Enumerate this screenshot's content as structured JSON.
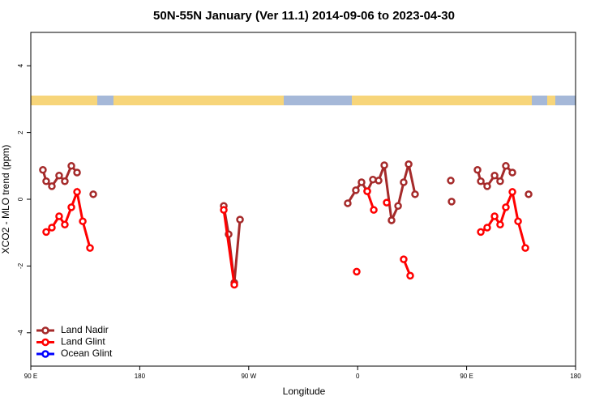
{
  "chart_data": {
    "type": "line",
    "title": "50N-55N January (Ver 11.1)   2014-09-06 to 2023-04-30",
    "xlabel": "Longitude",
    "ylabel": "XCO2 - MLO trend (ppm)",
    "xlim": [
      90,
      540
    ],
    "ylim": [
      -5,
      5
    ],
    "xticks": [
      {
        "value": 90,
        "label": "90 E"
      },
      {
        "value": 180,
        "label": "180"
      },
      {
        "value": 270,
        "label": "90 W"
      },
      {
        "value": 360,
        "label": "0"
      },
      {
        "value": 450,
        "label": "90 E"
      },
      {
        "value": 540,
        "label": "180"
      }
    ],
    "yticks": [
      -4,
      -2,
      0,
      2,
      4
    ],
    "legend": "bottom-left",
    "series": [
      {
        "name": "Land Nadir",
        "color": "#a52a2a",
        "x": [
          100.0,
          102.7,
          107.4,
          113.4,
          118.1,
          123.5,
          128.2,
          null,
          141.6,
          null,
          249.4,
          253.4,
          258.1,
          262.8,
          null,
          351.8,
          358.5,
          363.2,
          367.9,
          372.6,
          377.3,
          382.0,
          388.0,
          393.4,
          398.0,
          402.1,
          407.4,
          null,
          436.9,
          null,
          437.6,
          null,
          459.0,
          461.7,
          467.0,
          473.1,
          477.7,
          482.4,
          487.8,
          null,
          501.2
        ],
        "values": [
          0.88,
          0.54,
          0.39,
          0.71,
          0.54,
          1.0,
          0.8,
          null,
          0.15,
          null,
          -0.2,
          -1.05,
          -2.5,
          -0.61,
          null,
          -0.12,
          0.27,
          0.51,
          0.24,
          0.59,
          0.56,
          1.02,
          -0.63,
          -0.2,
          0.51,
          1.05,
          0.15,
          null,
          0.56,
          null,
          -0.07,
          null,
          0.88,
          0.54,
          0.39,
          0.71,
          0.54,
          1.0,
          0.8,
          null,
          0.15
        ]
      },
      {
        "name": "Land Glint",
        "color": "#ff0000",
        "x": [
          102.7,
          107.4,
          113.4,
          118.1,
          123.5,
          128.2,
          132.9,
          138.9,
          null,
          249.4,
          258.1,
          null,
          359.2,
          null,
          367.9,
          373.3,
          null,
          384.0,
          null,
          398.0,
          403.4,
          null,
          461.7,
          467.0,
          473.1,
          477.7,
          482.4,
          487.8,
          492.5,
          498.5
        ],
        "values": [
          -0.98,
          -0.85,
          -0.51,
          -0.76,
          -0.24,
          0.22,
          -0.66,
          -1.46,
          null,
          -0.32,
          -2.56,
          null,
          -2.17,
          null,
          0.24,
          -0.32,
          null,
          -0.1,
          null,
          -1.8,
          -2.29,
          null,
          -0.98,
          -0.85,
          -0.51,
          -0.76,
          -0.24,
          0.22,
          -0.66,
          -1.46
        ]
      },
      {
        "name": "Ocean Glint",
        "color": "#0000ff",
        "x": [],
        "values": []
      }
    ]
  }
}
